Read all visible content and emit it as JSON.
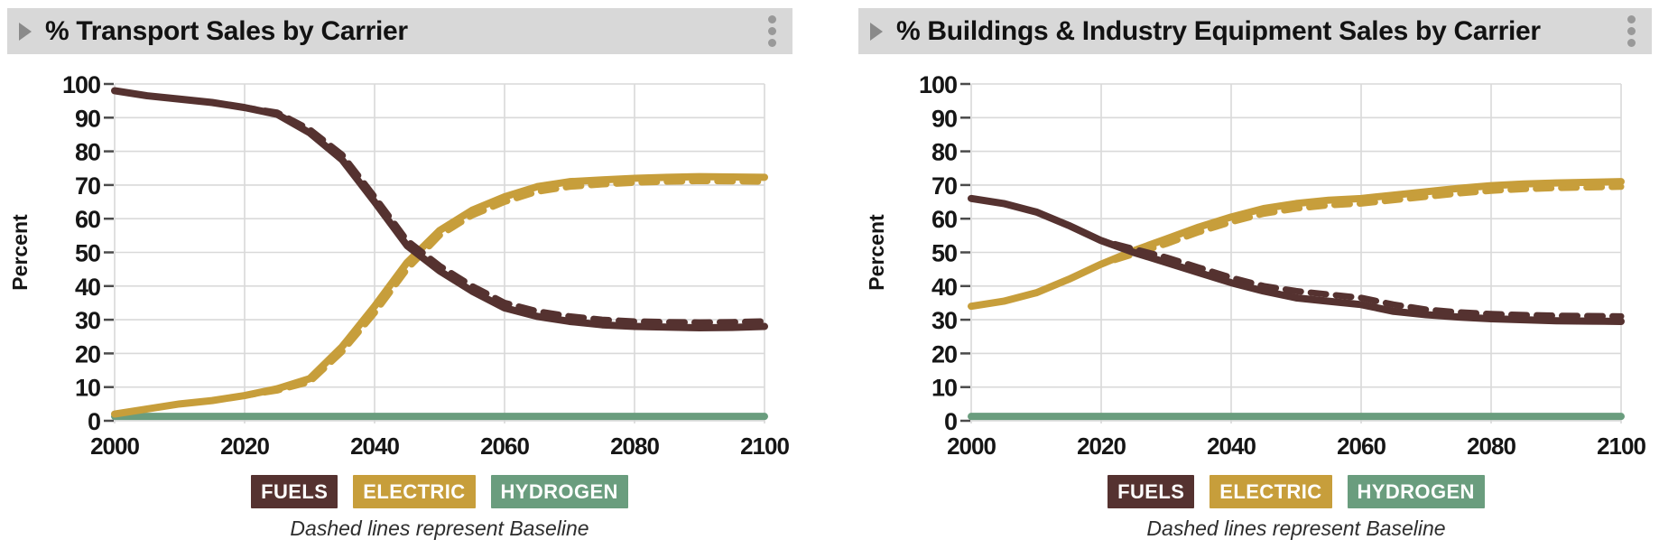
{
  "colors": {
    "header_bg": "#d8d8d8",
    "header_text": "#121212",
    "collapse_icon": "#8a8a8a",
    "kebab_dots": "#999999",
    "grid": "#d9d9d9",
    "axis_tick": "#4b4b4b",
    "tick_text": "#161616",
    "fuels": "#553230",
    "electric": "#c79e3b",
    "hydrogen": "#6a9d7e",
    "caption_text": "#2d2d2d"
  },
  "legend": [
    {
      "label": "FUELS",
      "color": "#553230"
    },
    {
      "label": "ELECTRIC",
      "color": "#c79e3b"
    },
    {
      "label": "HYDROGEN",
      "color": "#6a9d7e"
    }
  ],
  "panels": [
    {
      "title": "% Transport Sales by Carrier",
      "collapse_icon": "triangle-right-icon",
      "menu_icon": "kebab-menu-icon",
      "caption": "Dashed lines represent Baseline"
    },
    {
      "title": "% Buildings & Industry Equipment Sales by Carrier",
      "collapse_icon": "triangle-right-icon",
      "menu_icon": "kebab-menu-icon",
      "caption": "Dashed lines represent Baseline"
    }
  ],
  "chart_data": [
    {
      "type": "line",
      "title": "% Transport Sales by Carrier",
      "xlabel": "",
      "ylabel": "Percent",
      "xlim": [
        2000,
        2100
      ],
      "ylim": [
        0,
        100
      ],
      "xticks": [
        2000,
        2020,
        2040,
        2060,
        2080,
        2100
      ],
      "ytick_values": [
        0,
        10,
        20,
        30,
        40,
        50,
        60,
        70,
        80,
        90,
        100
      ],
      "grid": true,
      "legend": [
        "FUELS",
        "ELECTRIC",
        "HYDROGEN"
      ],
      "legend_position": "bottom",
      "note": "Dashed lines represent Baseline",
      "x": [
        2000,
        2005,
        2010,
        2015,
        2020,
        2025,
        2030,
        2035,
        2040,
        2045,
        2050,
        2055,
        2060,
        2065,
        2070,
        2075,
        2080,
        2085,
        2090,
        2095,
        2100
      ],
      "series": [
        {
          "name": "Fuels",
          "style": "solid",
          "color": "#553230",
          "values": [
            98,
            96.5,
            95.5,
            94.5,
            93,
            91,
            85.5,
            77.5,
            65,
            52,
            44.5,
            38.5,
            33.5,
            31,
            29.5,
            28.5,
            28,
            27.8,
            27.6,
            27.7,
            28
          ]
        },
        {
          "name": "Fuels Baseline",
          "style": "dashed",
          "color": "#553230",
          "values": [
            98,
            96.5,
            95.5,
            94.5,
            93,
            91.5,
            86.5,
            79,
            66.5,
            53.5,
            46,
            40,
            35,
            32.5,
            31,
            30,
            29.5,
            29.3,
            29.2,
            29.3,
            29.5
          ]
        },
        {
          "name": "Electric",
          "style": "solid",
          "color": "#c79e3b",
          "values": [
            2,
            3.5,
            5,
            6,
            7.5,
            9.5,
            12.5,
            22,
            34,
            47,
            56.5,
            62.5,
            66.5,
            69.5,
            71,
            71.5,
            72,
            72.3,
            72.5,
            72.4,
            72.3
          ]
        },
        {
          "name": "Electric Baseline",
          "style": "dashed",
          "color": "#c79e3b",
          "values": [
            2,
            3.5,
            5,
            6,
            7.5,
            9,
            11.5,
            20.5,
            32,
            45,
            55,
            61,
            65,
            68,
            69.5,
            70.2,
            70.7,
            71,
            71.2,
            71.1,
            71
          ]
        },
        {
          "name": "Hydrogen",
          "style": "solid",
          "color": "#6a9d7e",
          "values": [
            1.3,
            1.3,
            1.3,
            1.3,
            1.3,
            1.3,
            1.3,
            1.3,
            1.3,
            1.3,
            1.3,
            1.3,
            1.3,
            1.3,
            1.3,
            1.3,
            1.3,
            1.3,
            1.3,
            1.3,
            1.3
          ]
        },
        {
          "name": "Hydrogen Baseline",
          "style": "dashed",
          "color": "#6a9d7e",
          "values": [
            1.3,
            1.3,
            1.3,
            1.3,
            1.3,
            1.3,
            1.3,
            1.3,
            1.3,
            1.3,
            1.3,
            1.3,
            1.3,
            1.3,
            1.3,
            1.3,
            1.3,
            1.3,
            1.3,
            1.3,
            1.3
          ]
        }
      ]
    },
    {
      "type": "line",
      "title": "% Buildings & Industry Equipment Sales by Carrier",
      "xlabel": "",
      "ylabel": "Percent",
      "xlim": [
        2000,
        2100
      ],
      "ylim": [
        0,
        100
      ],
      "xticks": [
        2000,
        2020,
        2040,
        2060,
        2080,
        2100
      ],
      "ytick_values": [
        0,
        10,
        20,
        30,
        40,
        50,
        60,
        70,
        80,
        90,
        100
      ],
      "grid": true,
      "legend": [
        "FUELS",
        "ELECTRIC",
        "HYDROGEN"
      ],
      "legend_position": "bottom",
      "note": "Dashed lines represent Baseline",
      "x": [
        2000,
        2005,
        2010,
        2015,
        2020,
        2025,
        2030,
        2035,
        2040,
        2045,
        2050,
        2055,
        2060,
        2065,
        2070,
        2075,
        2080,
        2085,
        2090,
        2095,
        2100
      ],
      "series": [
        {
          "name": "Fuels",
          "style": "solid",
          "color": "#553230",
          "values": [
            66,
            64.5,
            62,
            58,
            53.5,
            50,
            47,
            44,
            41,
            38.5,
            36.5,
            35.5,
            34.5,
            32.5,
            31.5,
            30.8,
            30.3,
            30,
            29.7,
            29.6,
            29.5
          ]
        },
        {
          "name": "Fuels Baseline",
          "style": "dashed",
          "color": "#553230",
          "values": [
            66,
            64.5,
            62,
            58,
            53.5,
            51,
            48.5,
            45.5,
            42.5,
            40,
            38.5,
            37.5,
            36.5,
            34.5,
            33,
            32.2,
            31.7,
            31.4,
            31.2,
            31.1,
            31
          ]
        },
        {
          "name": "Electric",
          "style": "solid",
          "color": "#c79e3b",
          "values": [
            34,
            35.5,
            38,
            42,
            46.5,
            50.5,
            54,
            57.5,
            60.5,
            63,
            64.5,
            65.5,
            66,
            67,
            68,
            69,
            69.8,
            70.3,
            70.6,
            70.8,
            71
          ]
        },
        {
          "name": "Electric Baseline",
          "style": "dashed",
          "color": "#c79e3b",
          "values": [
            34,
            35.5,
            38,
            42,
            46.5,
            49.5,
            52.5,
            56,
            59,
            61.5,
            63,
            64,
            64.5,
            65.5,
            66.5,
            67.5,
            68.3,
            68.8,
            69.1,
            69.3,
            69.5
          ]
        },
        {
          "name": "Hydrogen",
          "style": "solid",
          "color": "#6a9d7e",
          "values": [
            1.3,
            1.3,
            1.3,
            1.3,
            1.3,
            1.3,
            1.3,
            1.3,
            1.3,
            1.3,
            1.3,
            1.3,
            1.3,
            1.3,
            1.3,
            1.3,
            1.3,
            1.3,
            1.3,
            1.3,
            1.3
          ]
        },
        {
          "name": "Hydrogen Baseline",
          "style": "dashed",
          "color": "#6a9d7e",
          "values": [
            1.3,
            1.3,
            1.3,
            1.3,
            1.3,
            1.3,
            1.3,
            1.3,
            1.3,
            1.3,
            1.3,
            1.3,
            1.3,
            1.3,
            1.3,
            1.3,
            1.3,
            1.3,
            1.3,
            1.3,
            1.3
          ]
        }
      ]
    }
  ]
}
